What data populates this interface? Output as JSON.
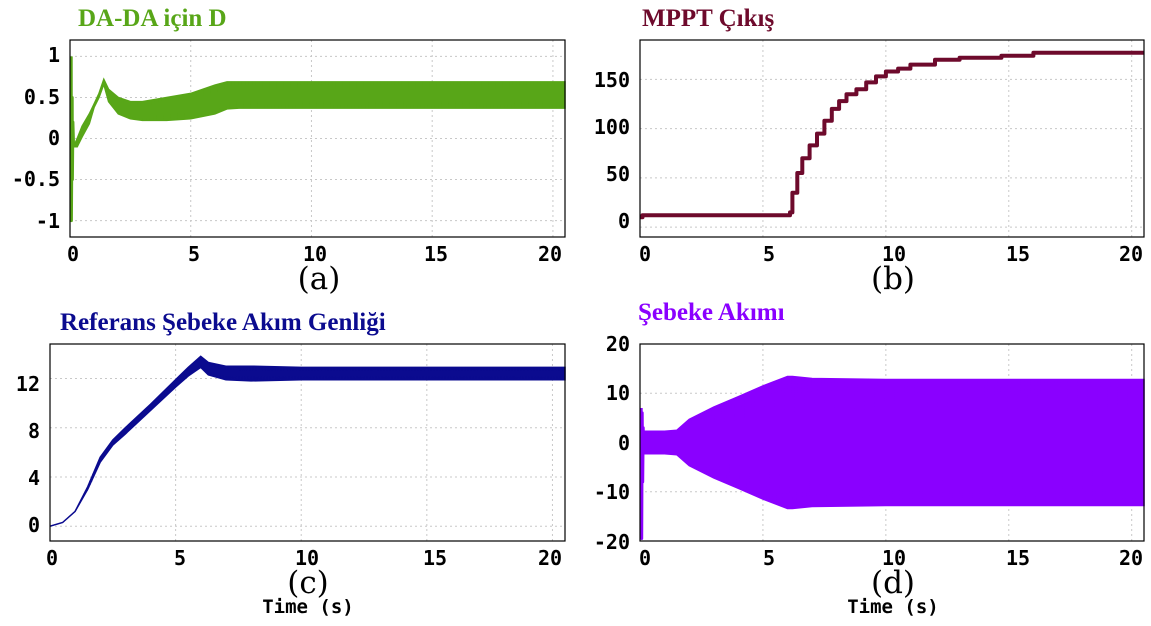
{
  "chart_data": [
    {
      "type": "line",
      "title": "DA-DA için D",
      "panel_label": "(a)",
      "xlabel": "",
      "ylabel": "",
      "xlim": [
        0,
        20.5
      ],
      "ylim": [
        -1.2,
        1.2
      ],
      "xticks": [
        "0",
        "5",
        "10",
        "15",
        "20"
      ],
      "yticks": [
        "1",
        "0.5",
        "0",
        "-0.5",
        "-1"
      ],
      "grid": true,
      "color": "#58a618",
      "series": [
        {
          "kind": "band",
          "x": [
            0.15,
            0.3,
            0.5,
            0.8,
            1.0,
            1.2,
            1.4,
            1.6,
            2.0,
            2.5,
            3.0,
            4.0,
            5.0,
            6.0,
            6.5,
            7.0,
            8.0,
            10.0,
            12.0,
            15.0,
            18.0,
            20.5
          ],
          "upper": [
            -0.1,
            0.0,
            0.15,
            0.3,
            0.42,
            0.55,
            0.72,
            0.6,
            0.5,
            0.45,
            0.45,
            0.5,
            0.55,
            0.65,
            0.69,
            0.69,
            0.69,
            0.69,
            0.69,
            0.69,
            0.69,
            0.69
          ],
          "lower": [
            -0.1,
            -0.1,
            0.02,
            0.18,
            0.38,
            0.5,
            0.66,
            0.45,
            0.3,
            0.24,
            0.22,
            0.22,
            0.24,
            0.3,
            0.36,
            0.37,
            0.37,
            0.37,
            0.37,
            0.37,
            0.37,
            0.37
          ]
        },
        {
          "kind": "line",
          "x": [
            0.05,
            0.06,
            0.09,
            0.1,
            0.12,
            0.15
          ],
          "y": [
            1.0,
            -1.0,
            0.5,
            -0.5,
            0.2,
            -0.1
          ]
        }
      ]
    },
    {
      "type": "line",
      "title": "MPPT Çıkış",
      "panel_label": "(b)",
      "xlabel": "",
      "ylabel": "",
      "xlim": [
        0,
        20.5
      ],
      "ylim": [
        -10,
        190
      ],
      "xticks": [
        "0",
        "5",
        "10",
        "15",
        "20"
      ],
      "yticks": [
        "150",
        "100",
        "50",
        "0"
      ],
      "grid": true,
      "color": "#6e0a2c",
      "series": [
        {
          "kind": "line",
          "step": true,
          "x": [
            0,
            0.1,
            6.0,
            6.1,
            6.2,
            6.4,
            6.6,
            6.9,
            7.2,
            7.5,
            7.8,
            8.1,
            8.4,
            8.8,
            9.2,
            9.6,
            10.0,
            10.5,
            11.0,
            12.0,
            13.0,
            14.7,
            16.0,
            20.5
          ],
          "y": [
            10,
            12,
            12,
            15,
            35,
            55,
            70,
            83,
            95,
            108,
            120,
            128,
            135,
            140,
            147,
            153,
            158,
            161,
            165,
            170,
            172,
            174,
            177,
            177
          ]
        }
      ]
    },
    {
      "type": "line",
      "title": "Referans Şebeke Akım Genliği",
      "panel_label": "(c)",
      "xlabel": "Time (s)",
      "ylabel": "",
      "xlim": [
        0,
        20.5
      ],
      "ylim": [
        -1.2,
        14.8
      ],
      "xticks": [
        "0",
        "5",
        "10",
        "15",
        "20"
      ],
      "yticks": [
        "12",
        "8",
        "4",
        "0"
      ],
      "grid": true,
      "color": "#0b0b8f",
      "series": [
        {
          "kind": "band",
          "x": [
            0,
            0.5,
            1.0,
            1.5,
            2.0,
            2.5,
            3.0,
            4.0,
            5.0,
            5.5,
            6.0,
            6.3,
            7.0,
            8.0,
            10.0,
            12.0,
            15.0,
            20.5
          ],
          "upper": [
            0,
            0.3,
            1.2,
            3.2,
            5.6,
            7.0,
            8.0,
            9.9,
            11.9,
            12.9,
            13.8,
            13.3,
            13.0,
            13.0,
            12.9,
            12.9,
            12.9,
            12.9
          ],
          "lower": [
            0,
            0.3,
            1.2,
            3.0,
            5.2,
            6.6,
            7.5,
            9.4,
            11.3,
            12.2,
            12.9,
            12.3,
            11.9,
            11.8,
            11.9,
            11.9,
            11.9,
            11.9
          ]
        }
      ]
    },
    {
      "type": "line",
      "title": "Şebeke Akımı",
      "panel_label": "(d)",
      "xlabel": "Time (s)",
      "ylabel": "",
      "xlim": [
        0,
        20.5
      ],
      "ylim": [
        -20,
        20
      ],
      "xticks": [
        "0",
        "5",
        "10",
        "15",
        "20"
      ],
      "yticks": [
        "20",
        "10",
        "0",
        "-10",
        "-20"
      ],
      "grid": true,
      "color": "#8a00ff",
      "series": [
        {
          "kind": "band",
          "x": [
            0.15,
            0.3,
            1.0,
            1.5,
            2.0,
            3.0,
            4.0,
            5.0,
            6.0,
            6.2,
            7.0,
            10.0,
            15.0,
            20.5
          ],
          "upper": [
            2.3,
            2.3,
            2.3,
            2.5,
            4.7,
            7.2,
            9.3,
            11.5,
            13.4,
            13.4,
            13.0,
            12.8,
            12.8,
            12.8
          ],
          "lower": [
            -2.3,
            -2.3,
            -2.3,
            -2.5,
            -4.7,
            -7.2,
            -9.3,
            -11.5,
            -13.4,
            -13.4,
            -13.0,
            -12.8,
            -12.8,
            -12.8
          ]
        },
        {
          "kind": "line",
          "x": [
            0.05,
            0.07,
            0.09,
            0.11,
            0.13,
            0.15
          ],
          "y": [
            7,
            -19.5,
            6,
            -8,
            3,
            -2
          ]
        }
      ]
    }
  ]
}
